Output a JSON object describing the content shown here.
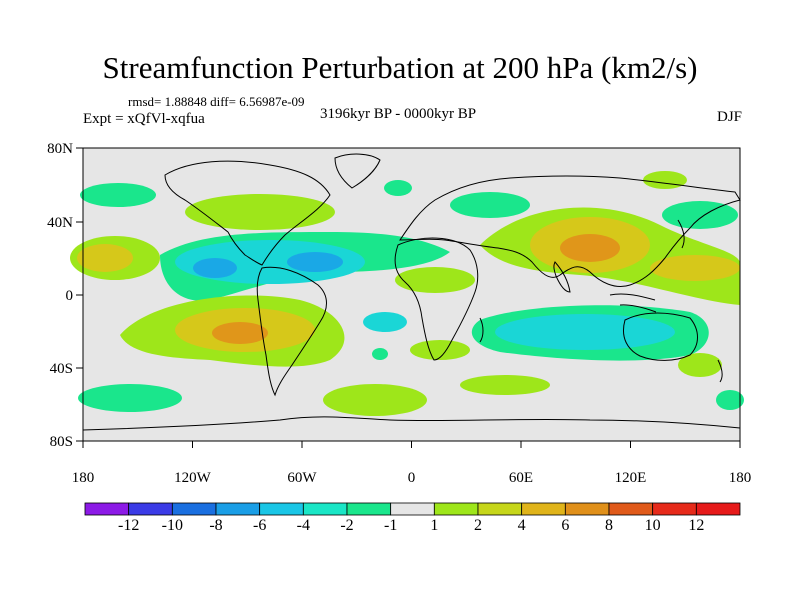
{
  "title": "Streamfunction Perturbation at 200 hPa (km2/s)",
  "stats": "rmsd= 1.88848 diff= 6.56987e-09",
  "expt": "Expt = xQfVl-xqfua",
  "period": "3196kyr BP - 0000kyr BP",
  "season": "DJF",
  "x_ticks": [
    "180",
    "120W",
    "60W",
    "0",
    "60E",
    "120E",
    "180"
  ],
  "y_ticks": [
    "80N",
    "40N",
    "0",
    "40S",
    "80S"
  ],
  "colorbar": {
    "labels": [
      "-12",
      "-10",
      "-8",
      "-6",
      "-4",
      "-2",
      "-1",
      "1",
      "2",
      "4",
      "6",
      "8",
      "10",
      "12"
    ],
    "colors": [
      "#8c1ae6",
      "#3b3be6",
      "#1a6fe0",
      "#1a9ee6",
      "#1ac6e6",
      "#1ae6c6",
      "#1ae68c",
      "#e6e6e6",
      "#9ee61a",
      "#c6d61a",
      "#e0b41a",
      "#e0901a",
      "#e05a1a",
      "#e62a1a",
      "#e61a1a"
    ]
  },
  "colors": {
    "background": "#e6e6e6",
    "neg_light": "#1ae68c",
    "neg_mid": "#1ad6d6",
    "neg_strong": "#1aa8e6",
    "pos_light": "#9ee61a",
    "pos_mid": "#d6c81a",
    "pos_strong": "#e0961a"
  }
}
